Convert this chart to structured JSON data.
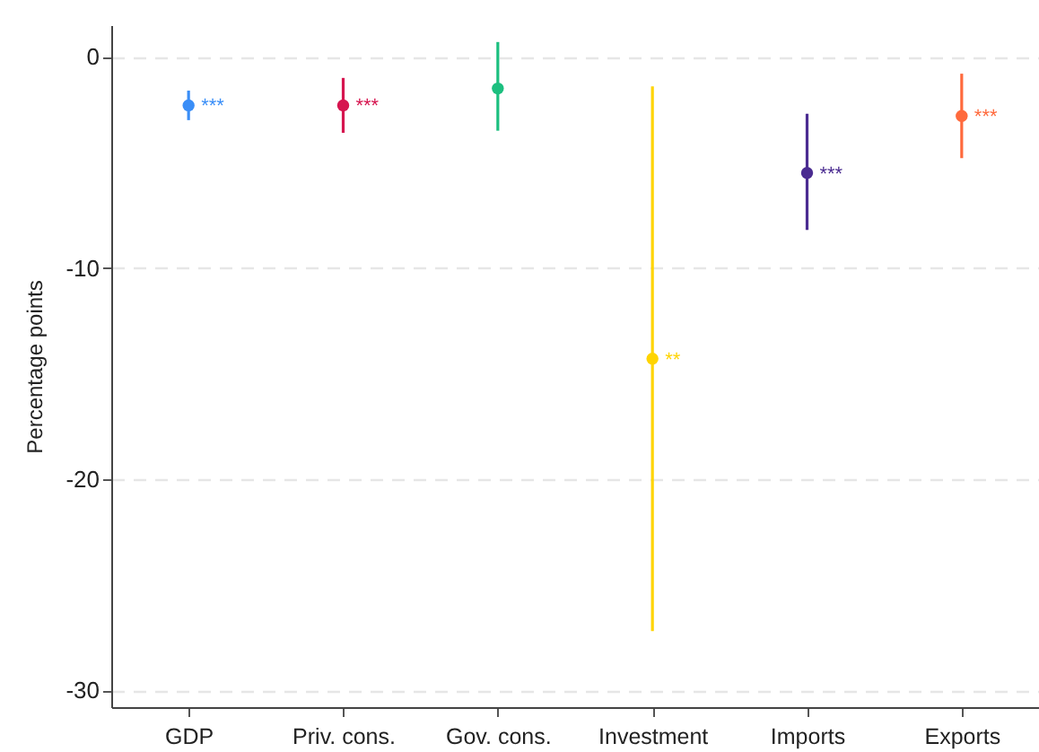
{
  "chart_data": {
    "type": "scatter",
    "ylabel": "Percentage points",
    "categories": [
      "GDP",
      "Priv. cons.",
      "Gov. cons.",
      "Investment",
      "Imports",
      "Exports"
    ],
    "values": [
      -2.3,
      -2.3,
      -1.5,
      -14.3,
      -5.5,
      -2.8
    ],
    "errors": [
      [
        -3.0,
        -1.6
      ],
      [
        -3.6,
        -1.0
      ],
      [
        -3.5,
        0.7
      ],
      [
        -27.2,
        -1.4
      ],
      [
        -8.2,
        -2.7
      ],
      [
        -4.8,
        -0.8
      ]
    ],
    "colors": [
      "#3a8ef7",
      "#d6154f",
      "#1cbf7f",
      "#ffd400",
      "#4b2c91",
      "#ff6a3d"
    ],
    "ylim": [
      -30.8,
      1.5
    ],
    "yticks": [
      0,
      -10,
      -20,
      -30
    ],
    "annotations": [
      {
        "text": "***",
        "x": "GDP",
        "y": -2.3
      },
      {
        "text": "***",
        "x": "Priv. cons.",
        "y": -2.3
      },
      {
        "text": "**",
        "x": "Investment",
        "y": -14.3
      },
      {
        "text": "***",
        "x": "Imports",
        "y": -5.5
      },
      {
        "text": "***",
        "x": "Exports",
        "y": -2.8
      }
    ],
    "grid": "y",
    "marker": "circle"
  }
}
